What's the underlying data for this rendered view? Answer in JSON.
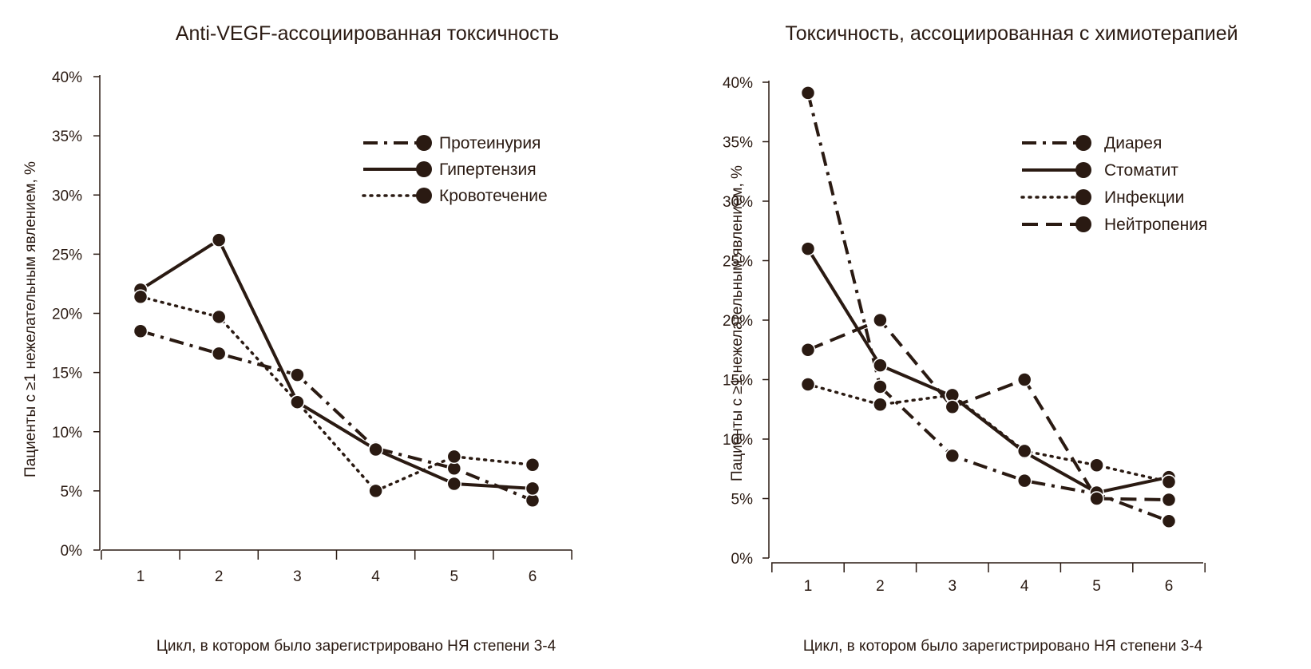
{
  "chart_data": [
    {
      "type": "line",
      "title": "Anti-VEGF-ассоциированная токсичность",
      "xlabel": "Цикл, в котором было зарегистрировано НЯ степени 3-4",
      "ylabel": "Пациенты с ≥1 нежелательным явлением, %",
      "categories": [
        "1",
        "2",
        "3",
        "4",
        "5",
        "6"
      ],
      "yticks": [
        "0%",
        "5%",
        "10%",
        "15%",
        "20%",
        "25%",
        "30%",
        "35%",
        "40%"
      ],
      "ylim": [
        0,
        40
      ],
      "grid": false,
      "legend_position": "top-right",
      "series": [
        {
          "name": "Протеинурия",
          "style": "dashdot",
          "values": [
            18.5,
            16.6,
            14.8,
            8.6,
            6.9,
            4.2
          ]
        },
        {
          "name": "Гипертензия",
          "style": "solid",
          "values": [
            22.0,
            26.2,
            12.5,
            8.5,
            5.6,
            5.2
          ]
        },
        {
          "name": "Кровотечение",
          "style": "dotted",
          "values": [
            21.4,
            19.7,
            12.5,
            5.0,
            7.9,
            7.2
          ]
        }
      ]
    },
    {
      "type": "line",
      "title": "Токсичность, ассоциированная с химиотерапией",
      "xlabel": "Цикл, в котором было зарегистрировано НЯ степени 3-4",
      "ylabel": "Пациенты с ≥1 нежелательным явлением, %",
      "categories": [
        "1",
        "2",
        "3",
        "4",
        "5",
        "6"
      ],
      "yticks": [
        "0%",
        "5%",
        "10%",
        "15%",
        "20%",
        "25%",
        "30%",
        "35%",
        "40%"
      ],
      "ylim": [
        0,
        40
      ],
      "grid": false,
      "legend_position": "top-right",
      "series": [
        {
          "name": "Диарея",
          "style": "dashdot",
          "values": [
            39.1,
            14.4,
            8.6,
            6.5,
            5.4,
            3.1
          ]
        },
        {
          "name": "Стоматит",
          "style": "solid",
          "values": [
            26.0,
            16.2,
            13.6,
            8.9,
            5.5,
            6.8
          ]
        },
        {
          "name": "Инфекции",
          "style": "dotted",
          "values": [
            14.6,
            12.9,
            13.7,
            9.0,
            7.8,
            6.4
          ]
        },
        {
          "name": "Нейтропения",
          "style": "dashed",
          "values": [
            17.5,
            20.0,
            12.7,
            15.0,
            5.0,
            4.9
          ]
        }
      ]
    }
  ],
  "colors": {
    "line": "#2a1a12",
    "text": "#2a1a12",
    "background": "#ffffff"
  }
}
